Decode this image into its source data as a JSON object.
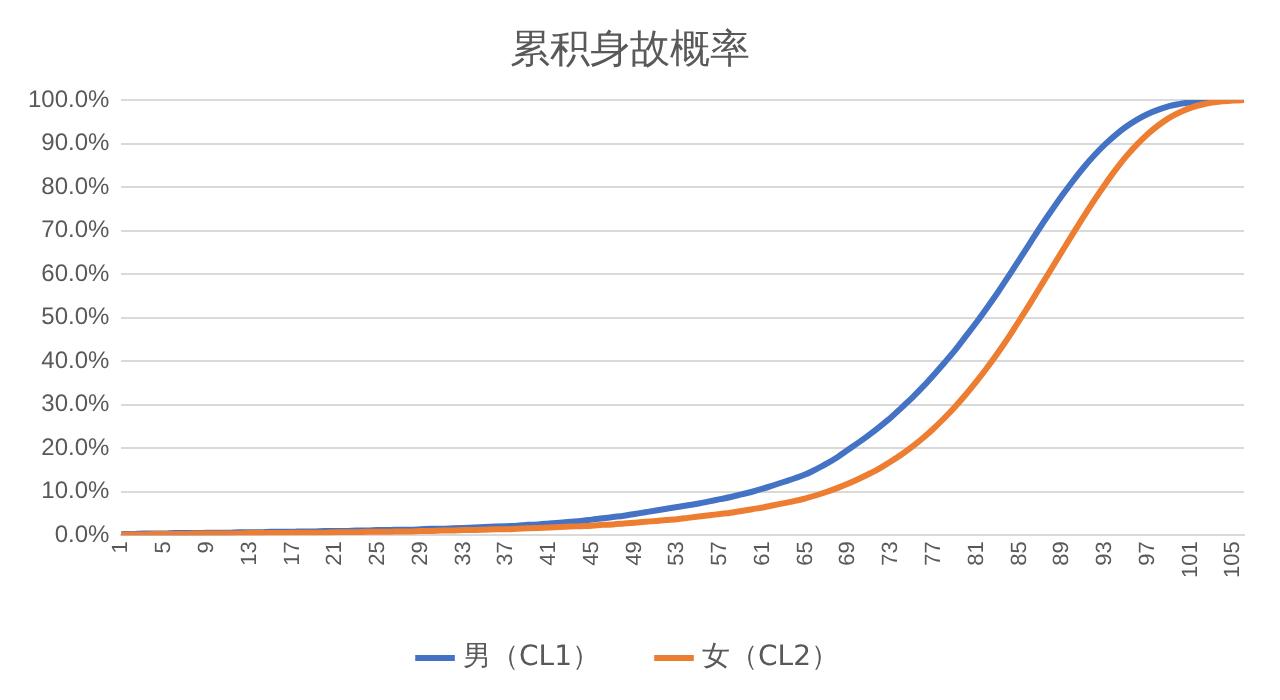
{
  "chart_data": {
    "type": "line",
    "title": "累积身故概率",
    "categories": [
      "1",
      null,
      null,
      null,
      "5",
      null,
      null,
      null,
      "9",
      null,
      null,
      null,
      "13",
      null,
      null,
      null,
      "17",
      null,
      null,
      null,
      "21",
      null,
      null,
      null,
      "25",
      null,
      null,
      null,
      "29",
      null,
      null,
      null,
      "33",
      null,
      null,
      null,
      "37",
      null,
      null,
      null,
      "41",
      null,
      null,
      null,
      "45",
      null,
      null,
      null,
      "49",
      null,
      null,
      null,
      "53",
      null,
      null,
      null,
      "57",
      null,
      null,
      null,
      "61",
      null,
      null,
      null,
      "65",
      null,
      null,
      null,
      "69",
      null,
      null,
      null,
      "73",
      null,
      null,
      null,
      "77",
      null,
      null,
      null,
      "81",
      null,
      null,
      null,
      "85",
      null,
      null,
      null,
      "89",
      null,
      null,
      null,
      "93",
      null,
      null,
      null,
      "97",
      null,
      null,
      null,
      "101",
      null,
      null,
      null,
      "105",
      null
    ],
    "series": [
      {
        "name": "男（CL1）",
        "color": "#4472c4",
        "values": [
          0.3,
          0.3,
          0.4,
          0.4,
          0.4,
          0.5,
          0.5,
          0.5,
          0.6,
          0.6,
          0.6,
          0.7,
          0.7,
          0.7,
          0.8,
          0.8,
          0.8,
          0.9,
          0.9,
          1.0,
          1.0,
          1.0,
          1.1,
          1.1,
          1.2,
          1.2,
          1.3,
          1.3,
          1.4,
          1.5,
          1.5,
          1.6,
          1.7,
          1.8,
          1.9,
          2.0,
          2.1,
          2.2,
          2.4,
          2.5,
          2.7,
          2.9,
          3.1,
          3.3,
          3.6,
          3.9,
          4.2,
          4.5,
          4.9,
          5.3,
          5.7,
          6.1,
          6.5,
          6.9,
          7.3,
          7.8,
          8.3,
          8.8,
          9.4,
          10.0,
          10.7,
          11.5,
          12.3,
          13.1,
          14.0,
          15.2,
          16.5,
          18.0,
          19.7,
          21.4,
          23.2,
          25.1,
          27.1,
          29.4,
          31.7,
          34.2,
          36.9,
          39.7,
          42.6,
          45.8,
          49.0,
          52.4,
          55.9,
          59.6,
          63.4,
          67.2,
          71.0,
          74.6,
          78.1,
          81.4,
          84.5,
          87.3,
          89.8,
          92.0,
          93.9,
          95.5,
          96.8,
          97.8,
          98.6,
          99.1,
          99.5,
          99.7,
          99.9,
          null,
          null,
          null
        ]
      },
      {
        "name": "女（CL2）",
        "color": "#ed7d31",
        "values": [
          0.2,
          0.2,
          0.2,
          0.3,
          0.3,
          0.3,
          0.3,
          0.4,
          0.4,
          0.4,
          0.4,
          0.4,
          0.5,
          0.5,
          0.5,
          0.5,
          0.6,
          0.6,
          0.6,
          0.6,
          0.7,
          0.7,
          0.7,
          0.8,
          0.8,
          0.8,
          0.9,
          0.9,
          1.0,
          1.0,
          1.1,
          1.1,
          1.2,
          1.2,
          1.3,
          1.4,
          1.4,
          1.5,
          1.6,
          1.7,
          1.8,
          1.9,
          2.0,
          2.1,
          2.2,
          2.4,
          2.5,
          2.7,
          2.9,
          3.1,
          3.3,
          3.5,
          3.7,
          4.0,
          4.3,
          4.6,
          4.9,
          5.2,
          5.6,
          6.0,
          6.4,
          6.9,
          7.4,
          7.9,
          8.5,
          9.2,
          10.0,
          10.9,
          11.9,
          13.0,
          14.2,
          15.5,
          17.0,
          18.6,
          20.4,
          22.4,
          24.6,
          27.0,
          29.6,
          32.4,
          35.4,
          38.6,
          42.0,
          45.6,
          49.4,
          53.3,
          57.3,
          61.3,
          65.3,
          69.3,
          73.2,
          77.0,
          80.6,
          84.0,
          87.1,
          89.8,
          92.2,
          94.2,
          95.9,
          97.2,
          98.2,
          98.9,
          99.4,
          99.7,
          99.9,
          100
        ]
      }
    ],
    "ylim": [
      0,
      100
    ],
    "yticks": [
      {
        "value": 0,
        "label": "0.0%"
      },
      {
        "value": 10,
        "label": "10.0%"
      },
      {
        "value": 20,
        "label": "20.0%"
      },
      {
        "value": 30,
        "label": "30.0%"
      },
      {
        "value": 40,
        "label": "40.0%"
      },
      {
        "value": 50,
        "label": "50.0%"
      },
      {
        "value": 60,
        "label": "60.0%"
      },
      {
        "value": 70,
        "label": "70.0%"
      },
      {
        "value": 80,
        "label": "80.0%"
      },
      {
        "value": 90,
        "label": "90.0%"
      },
      {
        "value": 100,
        "label": "100.0%"
      }
    ],
    "grid": "y",
    "legend": "bottom",
    "marker": "none",
    "line_style": "solid"
  }
}
